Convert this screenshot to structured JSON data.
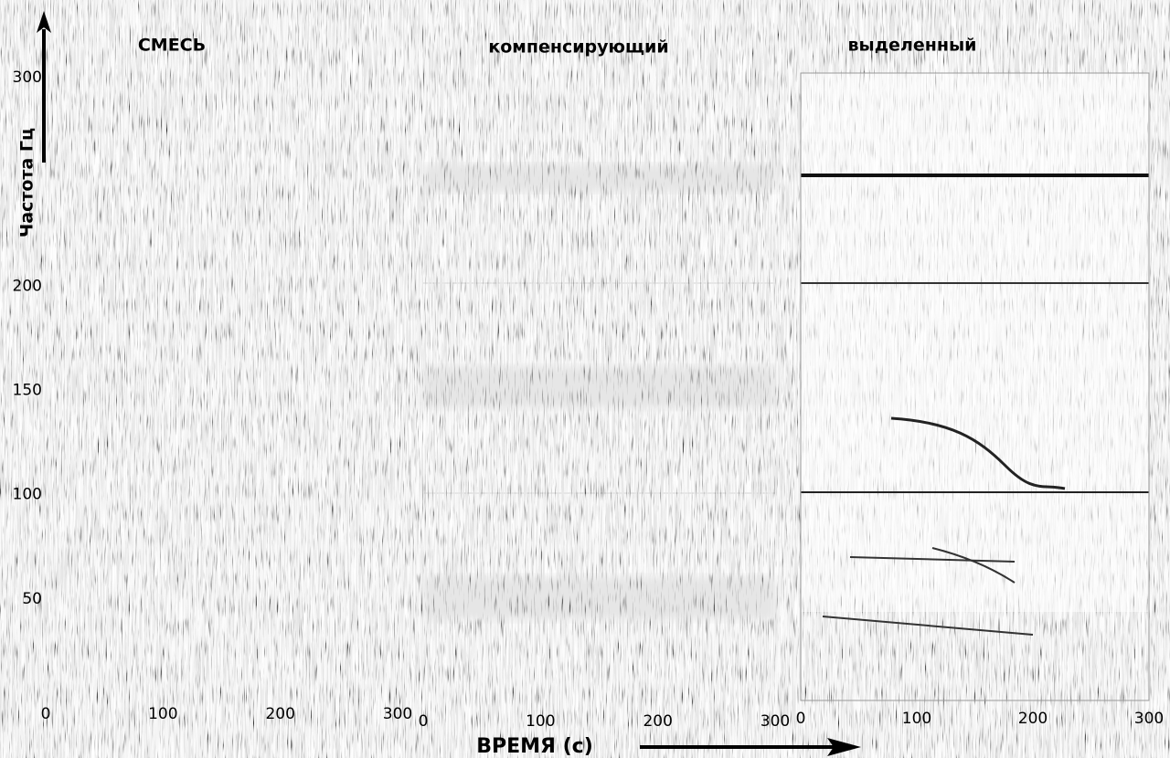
{
  "chart_data": [
    {
      "type": "spectrogram",
      "title": "СМЕСЬ",
      "ylabel": "Частота  Гц",
      "xlim": [
        0,
        300
      ],
      "xticks": [
        0,
        100,
        200,
        300
      ],
      "ylim": [
        0,
        300
      ],
      "yticks": [
        50,
        100,
        150,
        200,
        300
      ]
    },
    {
      "type": "spectrogram",
      "title": "компенсирующий",
      "xlabel": "ВРЕМЯ (с)",
      "xlim": [
        0,
        300
      ],
      "xticks": [
        0,
        100,
        200,
        300
      ],
      "ylim": [
        0,
        300
      ]
    },
    {
      "type": "spectrogram",
      "title": "выделенный",
      "xlim": [
        0,
        300
      ],
      "xticks": [
        0,
        100,
        200,
        300
      ],
      "ylim": [
        0,
        300
      ]
    }
  ]
}
